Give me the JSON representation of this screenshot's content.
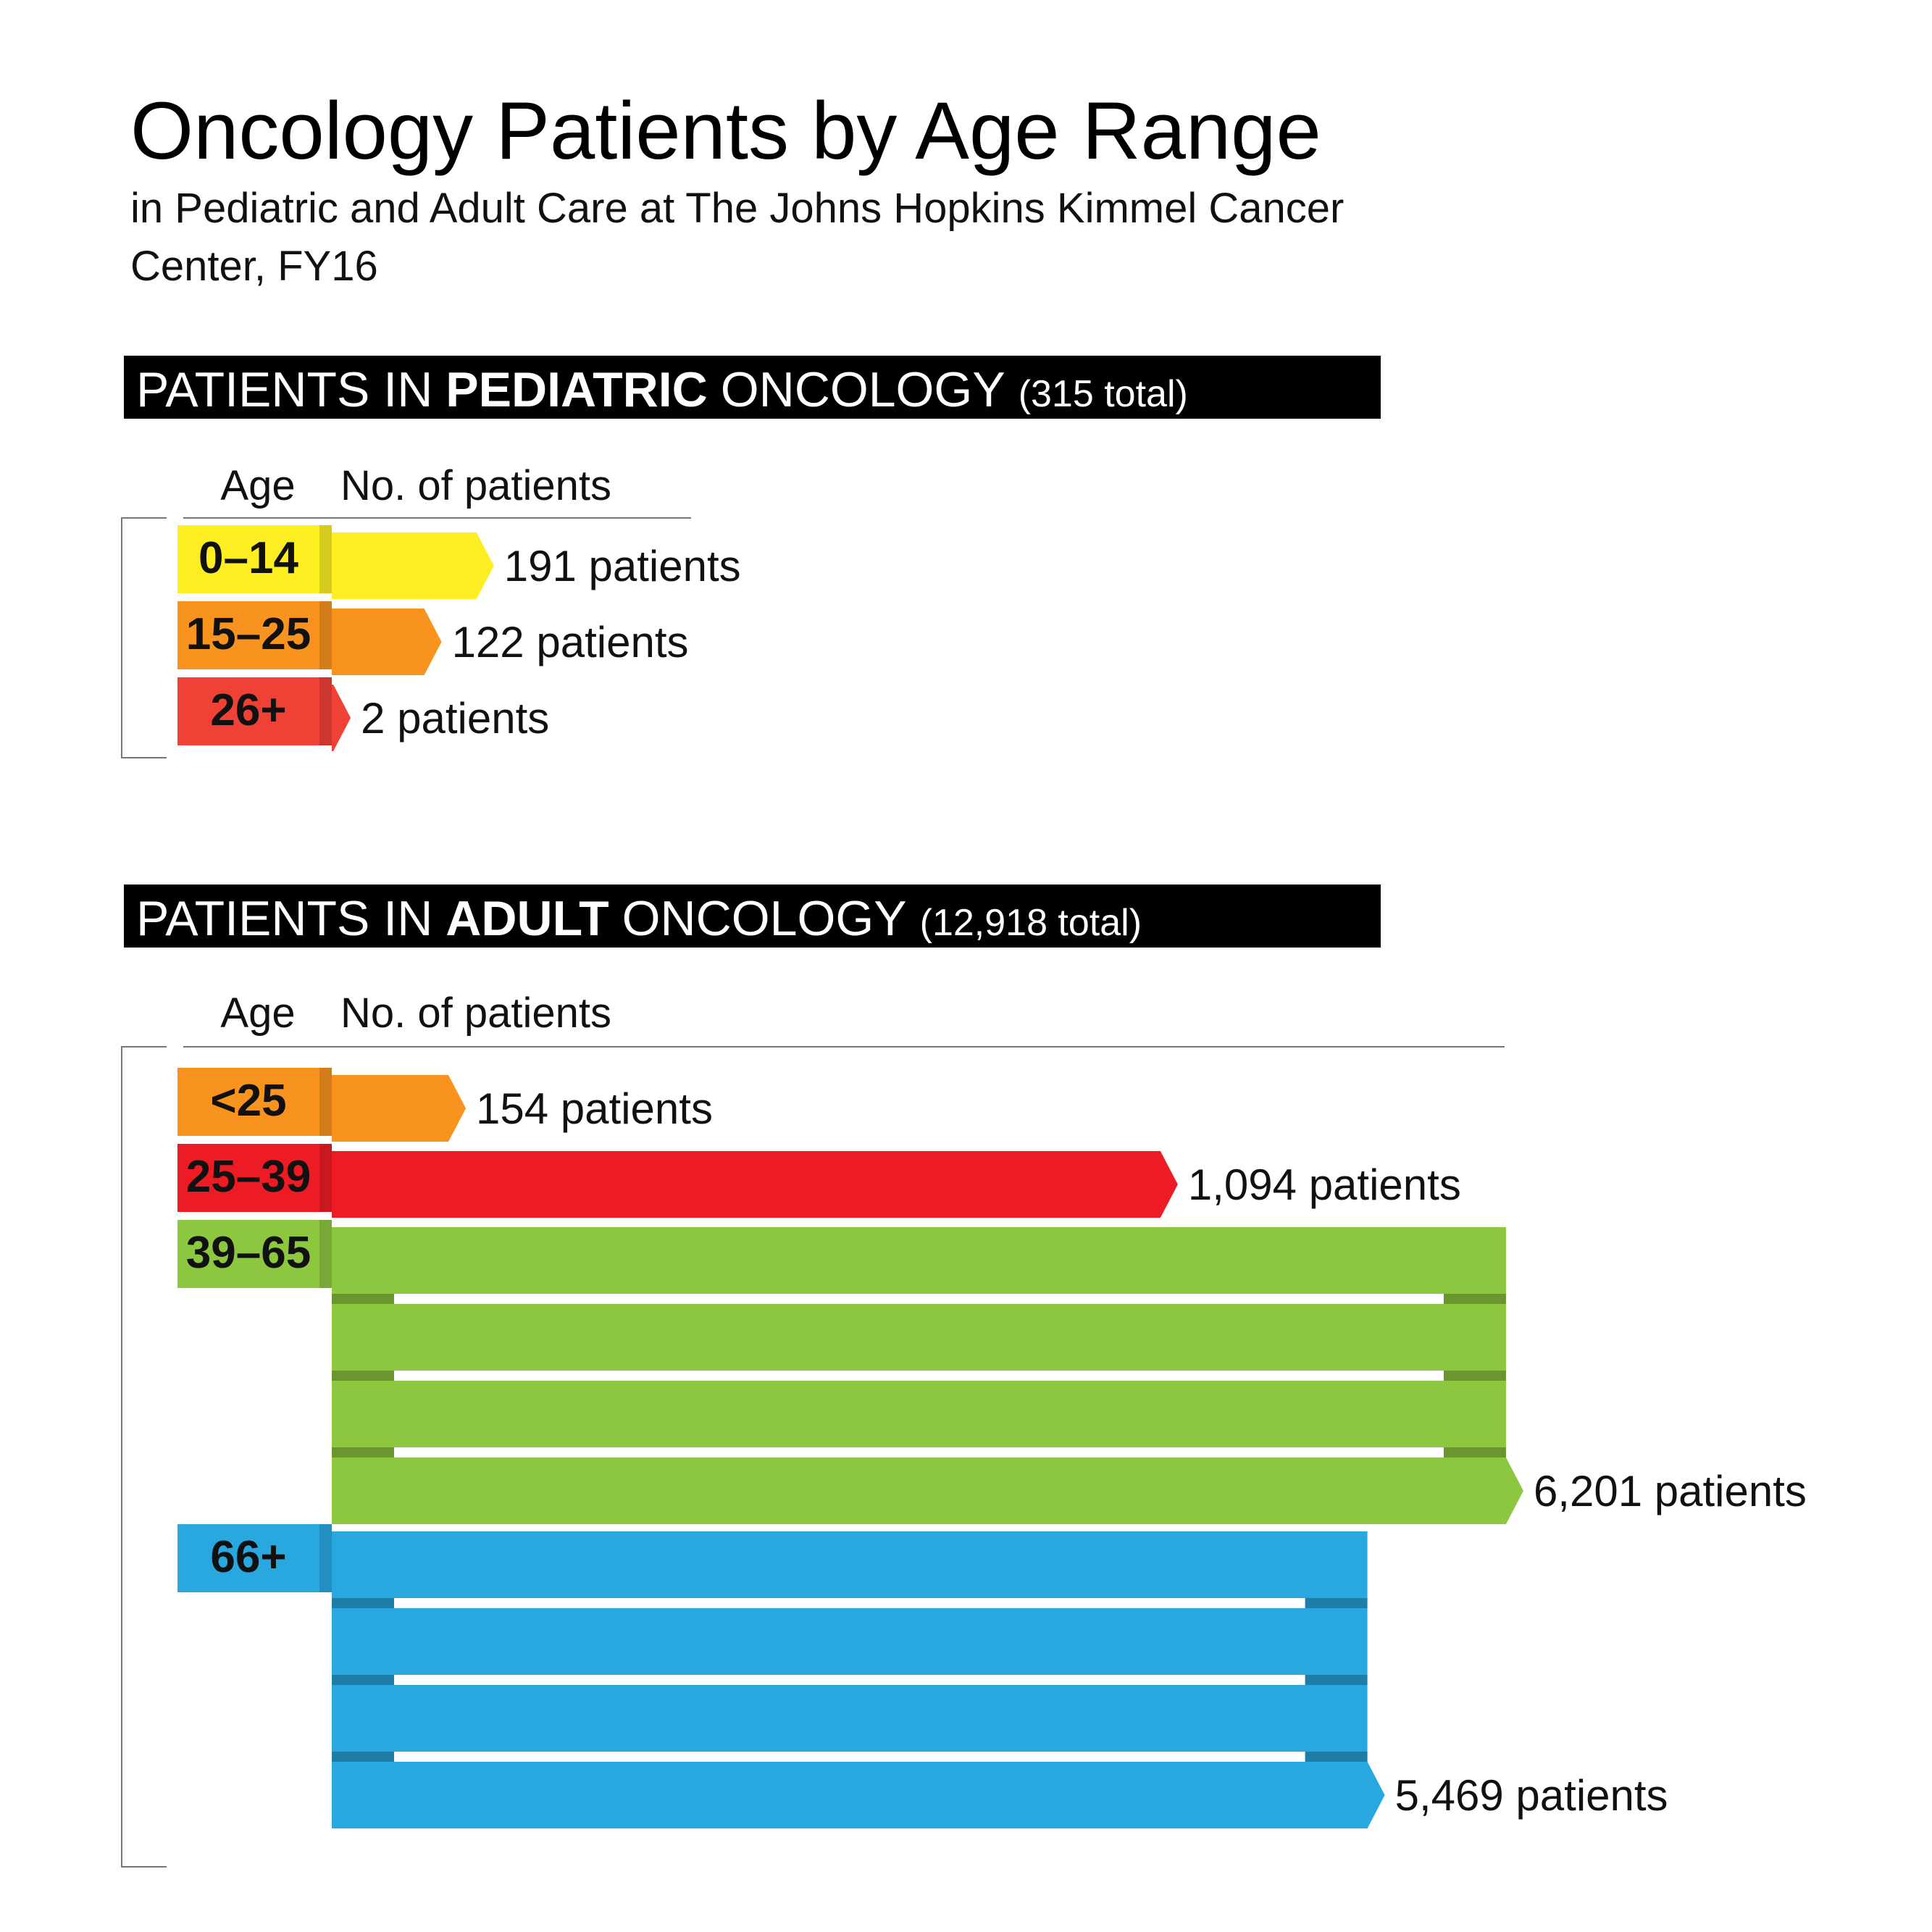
{
  "title": "Oncology Patients by Age Range",
  "subtitle": "in Pediatric and Adult Care at The Johns Hopkins Kimmel Cancer Center, FY16",
  "chart_data": [
    {
      "type": "bar",
      "heading": {
        "lead": "PATIENTS IN",
        "emphasis": "PEDIATRIC",
        "tail": "ONCOLOGY",
        "total": "(315 total)"
      },
      "ylabel": "Age",
      "xlabel": "No. of patients",
      "categories": [
        "0–14",
        "15–25",
        "26+"
      ],
      "values": [
        191,
        122,
        2
      ],
      "value_labels": [
        "191 patients",
        "122 patients",
        "2 patients"
      ],
      "colors": [
        "#fcee21",
        "#f7931e",
        "#ef4136"
      ]
    },
    {
      "type": "bar",
      "heading": {
        "lead": "PATIENTS IN",
        "emphasis": "ADULT",
        "tail": "ONCOLOGY",
        "total": "(12,918 total)"
      },
      "ylabel": "Age",
      "xlabel": "No. of patients",
      "categories": [
        "<25",
        "25–39",
        "39–65",
        "66+"
      ],
      "values": [
        154,
        1094,
        6201,
        5469
      ],
      "value_labels": [
        "154 patients",
        "1,094 patients",
        "6,201 patients",
        "5,469 patients"
      ],
      "colors": [
        "#f7931e",
        "#ed1c24",
        "#8dc63f",
        "#29a8e0"
      ]
    }
  ]
}
